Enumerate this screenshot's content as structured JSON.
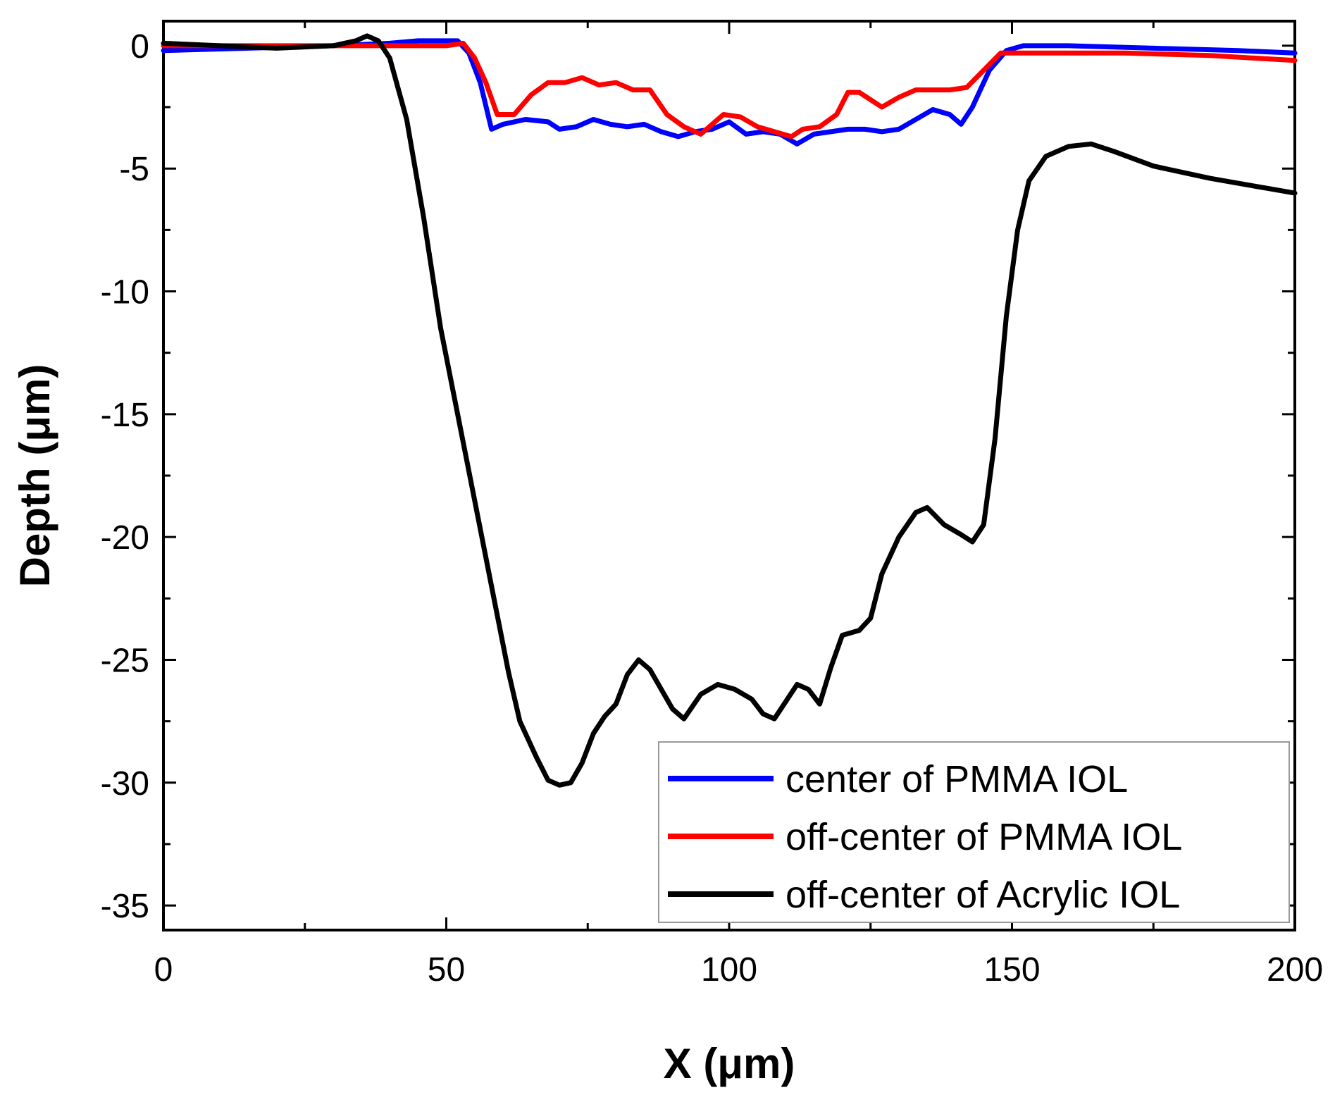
{
  "chart_data": {
    "type": "line",
    "title": "",
    "xlabel": "X (μm)",
    "ylabel": "Depth (μm)",
    "xlim": [
      0,
      200
    ],
    "ylim": [
      -36,
      1
    ],
    "xticks": [
      0,
      50,
      100,
      150,
      200
    ],
    "yticks": [
      0,
      -5,
      -10,
      -15,
      -20,
      -25,
      -30,
      -35
    ],
    "grid": false,
    "legend": "bottom-right",
    "series": [
      {
        "name": "center of PMMA IOL",
        "color": "#0000ff",
        "points": [
          [
            0,
            -0.2
          ],
          [
            15,
            -0.1
          ],
          [
            30,
            0.0
          ],
          [
            40,
            0.1
          ],
          [
            45,
            0.2
          ],
          [
            52,
            0.2
          ],
          [
            54,
            -0.3
          ],
          [
            56,
            -1.5
          ],
          [
            58,
            -3.4
          ],
          [
            60,
            -3.2
          ],
          [
            64,
            -3.0
          ],
          [
            68,
            -3.1
          ],
          [
            70,
            -3.4
          ],
          [
            73,
            -3.3
          ],
          [
            76,
            -3.0
          ],
          [
            79,
            -3.2
          ],
          [
            82,
            -3.3
          ],
          [
            85,
            -3.2
          ],
          [
            88,
            -3.5
          ],
          [
            91,
            -3.7
          ],
          [
            94,
            -3.5
          ],
          [
            97,
            -3.4
          ],
          [
            100,
            -3.1
          ],
          [
            103,
            -3.6
          ],
          [
            106,
            -3.5
          ],
          [
            109,
            -3.6
          ],
          [
            112,
            -4.0
          ],
          [
            115,
            -3.6
          ],
          [
            118,
            -3.5
          ],
          [
            121,
            -3.4
          ],
          [
            124,
            -3.4
          ],
          [
            127,
            -3.5
          ],
          [
            130,
            -3.4
          ],
          [
            133,
            -3.0
          ],
          [
            136,
            -2.6
          ],
          [
            139,
            -2.8
          ],
          [
            141,
            -3.2
          ],
          [
            143,
            -2.5
          ],
          [
            146,
            -1.0
          ],
          [
            149,
            -0.2
          ],
          [
            152,
            0.0
          ],
          [
            160,
            0.0
          ],
          [
            175,
            -0.1
          ],
          [
            190,
            -0.2
          ],
          [
            200,
            -0.3
          ]
        ]
      },
      {
        "name": "off-center of PMMA IOL",
        "color": "#ff0000",
        "points": [
          [
            0,
            0.0
          ],
          [
            20,
            0.0
          ],
          [
            40,
            0.0
          ],
          [
            50,
            0.0
          ],
          [
            53,
            0.1
          ],
          [
            55,
            -0.5
          ],
          [
            57,
            -1.5
          ],
          [
            59,
            -2.8
          ],
          [
            62,
            -2.8
          ],
          [
            65,
            -2.0
          ],
          [
            68,
            -1.5
          ],
          [
            71,
            -1.5
          ],
          [
            74,
            -1.3
          ],
          [
            77,
            -1.6
          ],
          [
            80,
            -1.5
          ],
          [
            83,
            -1.8
          ],
          [
            86,
            -1.8
          ],
          [
            89,
            -2.8
          ],
          [
            92,
            -3.3
          ],
          [
            95,
            -3.6
          ],
          [
            97,
            -3.2
          ],
          [
            99,
            -2.8
          ],
          [
            102,
            -2.9
          ],
          [
            105,
            -3.3
          ],
          [
            108,
            -3.5
          ],
          [
            111,
            -3.7
          ],
          [
            113,
            -3.4
          ],
          [
            116,
            -3.3
          ],
          [
            119,
            -2.8
          ],
          [
            121,
            -1.9
          ],
          [
            123,
            -1.9
          ],
          [
            125,
            -2.2
          ],
          [
            127,
            -2.5
          ],
          [
            130,
            -2.1
          ],
          [
            133,
            -1.8
          ],
          [
            136,
            -1.8
          ],
          [
            139,
            -1.8
          ],
          [
            142,
            -1.7
          ],
          [
            145,
            -1.0
          ],
          [
            148,
            -0.3
          ],
          [
            155,
            -0.3
          ],
          [
            170,
            -0.3
          ],
          [
            185,
            -0.4
          ],
          [
            200,
            -0.6
          ]
        ]
      },
      {
        "name": "off-center of Acrylic IOL",
        "color": "#000000",
        "points": [
          [
            0,
            0.1
          ],
          [
            10,
            0.0
          ],
          [
            20,
            -0.1
          ],
          [
            30,
            0.0
          ],
          [
            34,
            0.2
          ],
          [
            36,
            0.4
          ],
          [
            38,
            0.2
          ],
          [
            40,
            -0.5
          ],
          [
            43,
            -3.0
          ],
          [
            46,
            -7.0
          ],
          [
            49,
            -11.5
          ],
          [
            52,
            -15.0
          ],
          [
            55,
            -18.5
          ],
          [
            58,
            -22.0
          ],
          [
            61,
            -25.5
          ],
          [
            63,
            -27.5
          ],
          [
            66,
            -29.0
          ],
          [
            68,
            -29.9
          ],
          [
            70,
            -30.1
          ],
          [
            72,
            -30.0
          ],
          [
            74,
            -29.2
          ],
          [
            76,
            -28.0
          ],
          [
            78,
            -27.3
          ],
          [
            80,
            -26.8
          ],
          [
            82,
            -25.6
          ],
          [
            84,
            -25.0
          ],
          [
            86,
            -25.4
          ],
          [
            88,
            -26.2
          ],
          [
            90,
            -27.0
          ],
          [
            92,
            -27.4
          ],
          [
            95,
            -26.4
          ],
          [
            98,
            -26.0
          ],
          [
            101,
            -26.2
          ],
          [
            104,
            -26.6
          ],
          [
            106,
            -27.2
          ],
          [
            108,
            -27.4
          ],
          [
            110,
            -26.7
          ],
          [
            112,
            -26.0
          ],
          [
            114,
            -26.2
          ],
          [
            116,
            -26.8
          ],
          [
            118,
            -25.3
          ],
          [
            120,
            -24.0
          ],
          [
            123,
            -23.8
          ],
          [
            125,
            -23.3
          ],
          [
            127,
            -21.5
          ],
          [
            130,
            -20.0
          ],
          [
            133,
            -19.0
          ],
          [
            135,
            -18.8
          ],
          [
            138,
            -19.5
          ],
          [
            141,
            -19.9
          ],
          [
            143,
            -20.2
          ],
          [
            145,
            -19.5
          ],
          [
            147,
            -16.0
          ],
          [
            149,
            -11.0
          ],
          [
            151,
            -7.5
          ],
          [
            153,
            -5.5
          ],
          [
            156,
            -4.5
          ],
          [
            160,
            -4.1
          ],
          [
            164,
            -4.0
          ],
          [
            168,
            -4.3
          ],
          [
            175,
            -4.9
          ],
          [
            185,
            -5.4
          ],
          [
            195,
            -5.8
          ],
          [
            200,
            -6.0
          ]
        ]
      }
    ]
  }
}
